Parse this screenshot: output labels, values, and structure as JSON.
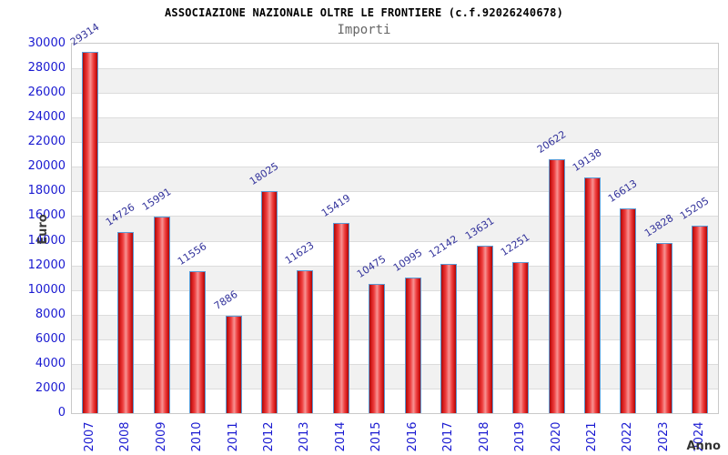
{
  "chart_data": {
    "type": "bar",
    "title": "ASSOCIAZIONE NAZIONALE OLTRE LE FRONTIERE (c.f.92026240678)",
    "subtitle": "Importi",
    "xlabel": "Anno",
    "ylabel": "Euro",
    "categories": [
      "2007",
      "2008",
      "2009",
      "2010",
      "2011",
      "2012",
      "2013",
      "2014",
      "2015",
      "2016",
      "2017",
      "2018",
      "2019",
      "2020",
      "2021",
      "2022",
      "2023",
      "2024"
    ],
    "values": [
      29314,
      14726,
      15991,
      11556,
      7886,
      18025,
      11623,
      15419,
      10475,
      10995,
      12142,
      13631,
      12251,
      20622,
      19138,
      16613,
      13828,
      15205
    ],
    "value_labels": [
      "29314",
      "14726",
      "15991",
      "11556",
      "7886",
      "18025",
      "11623",
      "15419",
      "10475",
      "10995",
      "12142",
      "13631",
      "12251",
      "20622",
      "19138",
      "16613",
      "13828",
      "15205"
    ],
    "ylim": [
      0,
      30000
    ],
    "ytick_step": 2000,
    "yticks": [
      0,
      2000,
      4000,
      6000,
      8000,
      10000,
      12000,
      14000,
      16000,
      18000,
      20000,
      22000,
      24000,
      26000,
      28000,
      30000
    ],
    "legend": "none",
    "grid": "horizontal-bands",
    "colors": {
      "bar_border": "#5b9bd5",
      "bar_dark": "#a50b0b",
      "bar_mid": "#ee4040",
      "bar_highlight": "#f79292",
      "tick_label": "#1a1ad1",
      "value_label": "#32329b",
      "band_alt": "#f1f1f1",
      "gridline": "#dcdcdc",
      "plot_border": "#c9c9c9",
      "title": "#000000",
      "subtitle": "#666666",
      "axis_title": "#3c3c3c",
      "background": "#ffffff"
    }
  }
}
